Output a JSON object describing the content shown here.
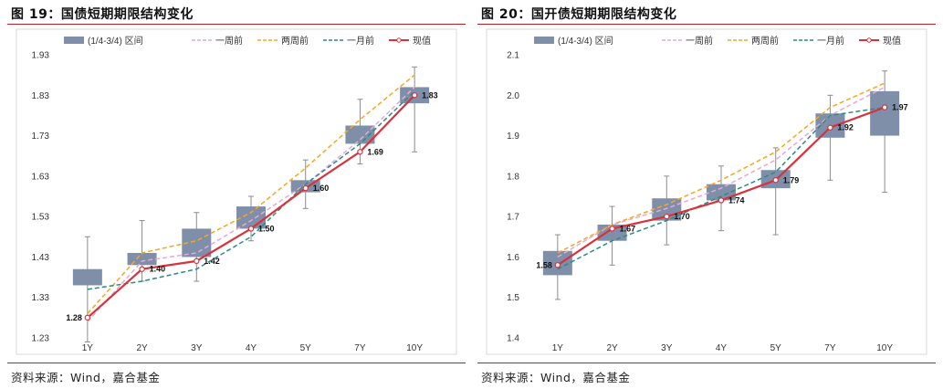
{
  "figures": [
    {
      "title": "图 19：国债短期期限结构变化",
      "source": "资料来源：Wind，嘉合基金"
    },
    {
      "title": "图 20：国开债短期期限结构变化",
      "source": "资料来源：Wind，嘉合基金"
    }
  ],
  "chart_data": [
    {
      "type": "boxplot-line",
      "categories": [
        "1Y",
        "2Y",
        "3Y",
        "4Y",
        "5Y",
        "7Y",
        "10Y"
      ],
      "ylim": [
        1.23,
        1.93
      ],
      "yticks": [
        "1.93",
        "1.83",
        "1.73",
        "1.63",
        "1.53",
        "1.43",
        "1.33",
        "1.23"
      ],
      "grid": false,
      "legend_position": "top",
      "legend": [
        "(1/4-3/4) 区间",
        "一周前",
        "两周前",
        "一月前",
        "现值"
      ],
      "boxes": [
        {
          "low": 1.22,
          "q1": 1.36,
          "q3": 1.4,
          "high": 1.48
        },
        {
          "low": 1.37,
          "q1": 1.41,
          "q3": 1.44,
          "high": 1.52
        },
        {
          "low": 1.37,
          "q1": 1.43,
          "q3": 1.5,
          "high": 1.54
        },
        {
          "low": 1.47,
          "q1": 1.5,
          "q3": 1.555,
          "high": 1.58
        },
        {
          "low": 1.55,
          "q1": 1.59,
          "q3": 1.62,
          "high": 1.67
        },
        {
          "low": 1.66,
          "q1": 1.71,
          "q3": 1.755,
          "high": 1.82
        },
        {
          "low": 1.69,
          "q1": 1.81,
          "q3": 1.85,
          "high": 1.9
        }
      ],
      "series": [
        {
          "name": "一周前",
          "color": "#e4a9d8",
          "dash": true,
          "values": [
            1.27,
            1.42,
            1.44,
            1.52,
            1.61,
            1.72,
            1.85
          ]
        },
        {
          "name": "两周前",
          "color": "#f5a623",
          "dash": true,
          "values": [
            1.29,
            1.44,
            1.47,
            1.54,
            1.65,
            1.77,
            1.88
          ]
        },
        {
          "name": "一月前",
          "color": "#2b8c7e",
          "dash": true,
          "values": [
            1.35,
            1.37,
            1.4,
            1.48,
            1.61,
            1.71,
            1.84
          ]
        },
        {
          "name": "现值",
          "color": "#d8323b",
          "dash": false,
          "values": [
            1.28,
            1.4,
            1.42,
            1.5,
            1.6,
            1.69,
            1.83
          ],
          "labels": [
            "1.28",
            "1.40",
            "1.42",
            "1.50",
            "1.60",
            "1.69",
            "1.83"
          ]
        }
      ]
    },
    {
      "type": "boxplot-line",
      "categories": [
        "1Y",
        "2Y",
        "3Y",
        "4Y",
        "5Y",
        "7Y",
        "10Y"
      ],
      "ylim": [
        1.4,
        2.1
      ],
      "yticks": [
        "2.1",
        "2.0",
        "1.9",
        "1.8",
        "1.7",
        "1.6",
        "1.5",
        "1.4"
      ],
      "grid": false,
      "legend_position": "top",
      "legend": [
        "(1/4-3/4) 区间",
        "一周前",
        "两周前",
        "一月前",
        "现值"
      ],
      "boxes": [
        {
          "low": 1.495,
          "q1": 1.555,
          "q3": 1.615,
          "high": 1.655
        },
        {
          "low": 1.58,
          "q1": 1.64,
          "q3": 1.68,
          "high": 1.725
        },
        {
          "low": 1.63,
          "q1": 1.69,
          "q3": 1.745,
          "high": 1.8
        },
        {
          "low": 1.665,
          "q1": 1.74,
          "q3": 1.78,
          "high": 1.825
        },
        {
          "low": 1.655,
          "q1": 1.77,
          "q3": 1.815,
          "high": 1.87
        },
        {
          "low": 1.79,
          "q1": 1.895,
          "q3": 1.955,
          "high": 2.0
        },
        {
          "low": 1.76,
          "q1": 1.9,
          "q3": 2.01,
          "high": 2.06
        }
      ],
      "series": [
        {
          "name": "一周前",
          "color": "#e4a9d8",
          "dash": true,
          "values": [
            1.6,
            1.68,
            1.72,
            1.77,
            1.84,
            1.95,
            2.02
          ]
        },
        {
          "name": "两周前",
          "color": "#f5a623",
          "dash": true,
          "values": [
            1.61,
            1.68,
            1.73,
            1.79,
            1.86,
            1.97,
            2.03
          ]
        },
        {
          "name": "一月前",
          "color": "#2b8c7e",
          "dash": true,
          "values": [
            1.57,
            1.64,
            1.69,
            1.75,
            1.81,
            1.95,
            1.97
          ]
        },
        {
          "name": "现值",
          "color": "#d8323b",
          "dash": false,
          "values": [
            1.58,
            1.67,
            1.7,
            1.74,
            1.79,
            1.92,
            1.97
          ],
          "labels": [
            "1.58",
            "1.67",
            "1.70",
            "1.74",
            "1.79",
            "1.92",
            "1.97"
          ]
        }
      ]
    }
  ]
}
